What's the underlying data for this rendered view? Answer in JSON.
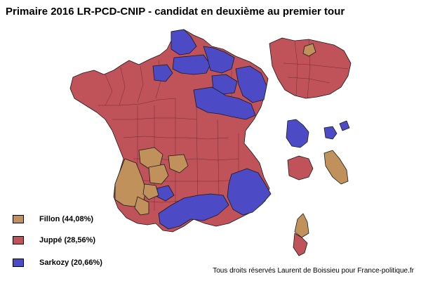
{
  "title": "Primaire 2016 LR-PCD-CNIP - candidat en deuxième au premier tour",
  "colors": {
    "fillon": "#c1915c",
    "juppe": "#c0525a",
    "sarkozy": "#4c4bc5",
    "background": "#ffffff"
  },
  "legend": [
    {
      "key": "fillon",
      "label": "Fillon (44,08%)",
      "color": "#c1915c"
    },
    {
      "key": "juppe",
      "label": "Juppé (28,56%)",
      "color": "#c0525a"
    },
    {
      "key": "sarkozy",
      "label": "Sarkozy (20,66%)",
      "color": "#4c4bc5"
    }
  ],
  "credit": "Tous droits réservés Laurent de Boissieu pour France-politique.fr"
}
